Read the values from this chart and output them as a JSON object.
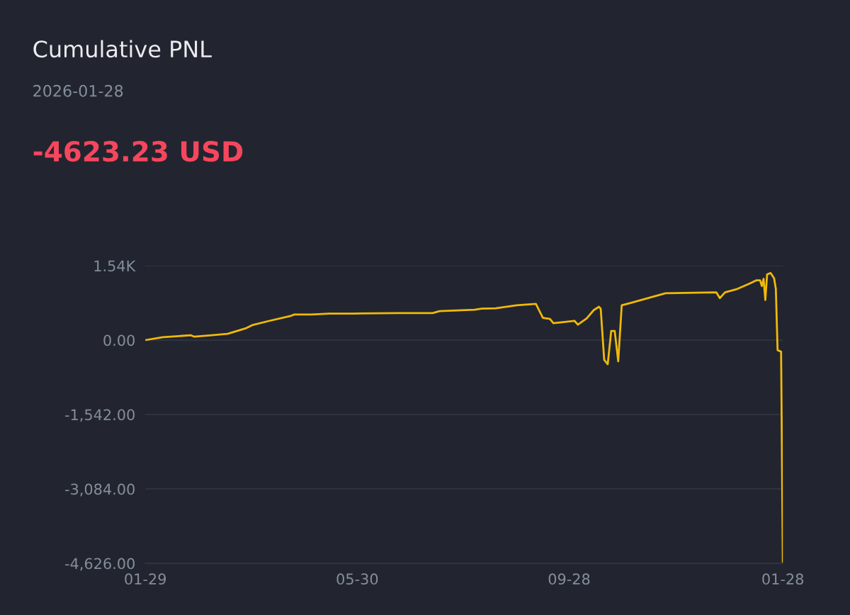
{
  "chart_data": {
    "type": "line",
    "title": "Cumulative PNL",
    "subtitle": "2026-01-28",
    "annotations": [
      "-4623.23 USD"
    ],
    "x": [
      "2025-01-29",
      "2025-02-08",
      "2025-02-24",
      "2025-02-26",
      "2025-03-08",
      "2025-03-17",
      "2025-03-27",
      "2025-03-31",
      "2025-04-10",
      "2025-04-22",
      "2025-04-24",
      "2025-05-04",
      "2025-05-14",
      "2025-05-28",
      "2025-06-22",
      "2025-07-12",
      "2025-07-16",
      "2025-08-05",
      "2025-08-09",
      "2025-08-17",
      "2025-08-29",
      "2025-09-09",
      "2025-09-13",
      "2025-09-17",
      "2025-09-19",
      "2025-10-01",
      "2025-10-03",
      "2025-10-08",
      "2025-10-12",
      "2025-10-15",
      "2025-10-16",
      "2025-10-18",
      "2025-10-20",
      "2025-10-22",
      "2025-10-24",
      "2025-10-26",
      "2025-10-28",
      "2025-11-02",
      "2025-11-22",
      "2025-12-21",
      "2025-12-23",
      "2025-12-26",
      "2026-01-02",
      "2026-01-09",
      "2026-01-13",
      "2026-01-15",
      "2026-01-16",
      "2026-01-17",
      "2026-01-18",
      "2026-01-19",
      "2026-01-21",
      "2026-01-23",
      "2026-01-24",
      "2026-01-25",
      "2026-01-27",
      "2026-01-28"
    ],
    "series": [
      {
        "color": "#f0b90b",
        "values": [
          0,
          60,
          100,
          70,
          100,
          130,
          240,
          310,
          400,
          500,
          530,
          530,
          550,
          550,
          560,
          560,
          600,
          630,
          650,
          660,
          720,
          750,
          460,
          440,
          350,
          400,
          320,
          450,
          620,
          690,
          650,
          -410,
          -500,
          190,
          190,
          -440,
          720,
          770,
          970,
          990,
          870,
          990,
          1060,
          1170,
          1240,
          1240,
          1120,
          1270,
          830,
          1360,
          1390,
          1280,
          1060,
          -210,
          -240,
          -4623.23
        ]
      }
    ],
    "xlim": [
      "2025-01-29",
      "2026-01-28"
    ],
    "xticks": [
      {
        "value": "2025-01-29",
        "label": "01-29"
      },
      {
        "value": "2025-05-30",
        "label": "05-30"
      },
      {
        "value": "2025-09-28",
        "label": "09-28"
      },
      {
        "value": "2026-01-28",
        "label": "01-28"
      }
    ],
    "ylim": [
      -4626,
      1542
    ],
    "yticks": [
      {
        "value": 1542,
        "label": "1.54K"
      },
      {
        "value": 0,
        "label": "0.00"
      },
      {
        "value": -1542,
        "label": "-1,542.00"
      },
      {
        "value": -3084,
        "label": "-3,084.00"
      },
      {
        "value": -4626,
        "label": "-4,626.00"
      }
    ],
    "grid": "y",
    "marker": "none",
    "line_style": "solid"
  }
}
